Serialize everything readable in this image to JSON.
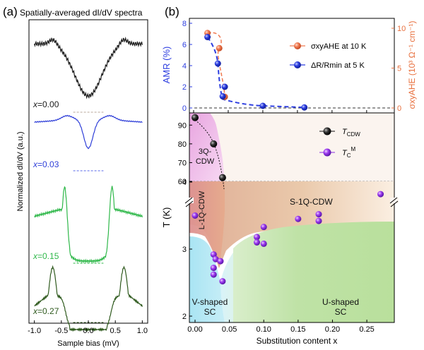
{
  "chart_data": [
    {
      "type": "line",
      "panel_label": "(a)",
      "title": "Spatially-averaged dI/dV spectra",
      "xlabel": "Sample bias (mV)",
      "ylabel": "Normalized dI/dV (a.u.)",
      "xlim": [
        -1.0,
        1.0
      ],
      "x_ticks": [
        "-1.0",
        "-0.5",
        "0.0",
        "0.5",
        "1.0"
      ],
      "series": [
        {
          "label_html": "x=0.00",
          "label_var": "x",
          "label_val": "=0.00",
          "color": "#1a1a1a"
        },
        {
          "label_html": "x=0.03",
          "label_var": "x",
          "label_val": "=0.03",
          "color": "#2f3fd8"
        },
        {
          "label_html": "x=0.15",
          "label_var": "x",
          "label_val": "=0.15",
          "color": "#2fb84a"
        },
        {
          "label_html": "x=0.27",
          "label_var": "x",
          "label_val": "=0.27",
          "color": "#2f5a1e"
        }
      ]
    },
    {
      "type": "scatter",
      "panel_label": "(b)",
      "top": {
        "ylabel_left": "AMR (%)",
        "ylabel_right": "σxyAHE (10³ Ω⁻¹ cm⁻¹)",
        "ylim_left": [
          0,
          8
        ],
        "ylim_right": [
          0,
          10
        ],
        "left_ticks": [
          "0",
          "2",
          "4",
          "6",
          "8"
        ],
        "right_ticks": [
          "0",
          "5",
          "10"
        ],
        "series": [
          {
            "name": "σxyAHE at 10 K",
            "color": "#f07a52",
            "axis": "right",
            "x": [
              0.02,
              0.037,
              0.045
            ],
            "y": [
              9.4,
              7.5,
              1.4
            ]
          },
          {
            "name": "ΔR/Rmin at 5 K",
            "color": "#2d3ee0",
            "axis": "left",
            "x": [
              0.02,
              0.035,
              0.042,
              0.045,
              0.1,
              0.16
            ],
            "y": [
              6.7,
              4.2,
              1.1,
              2.0,
              0.2,
              0.05
            ]
          }
        ]
      },
      "bottom": {
        "xlabel": "Substitution  content x",
        "ylabel": "T (K)",
        "x_ticks": [
          "0.00",
          "0.05",
          "0.10",
          "0.15",
          "0.20",
          "0.25"
        ],
        "y_ticks_upper": [
          "60",
          "70",
          "80",
          "90"
        ],
        "y_ticks_lower": [
          "2",
          "3",
          "4"
        ],
        "regions": [
          "3Q-CDW",
          "S-1Q-CDW",
          "L-1Q-CDW",
          "V-shaped SC",
          "U-shaped SC"
        ],
        "series": [
          {
            "name": "T_CDW",
            "color": "#111111",
            "x": [
              0.0,
              0.027,
              0.04
            ],
            "y": [
              94,
              80,
              62
            ]
          },
          {
            "name": "T_C^M",
            "color": "#8a2be2",
            "x": [
              0.0,
              0.027,
              0.027,
              0.027,
              0.03,
              0.037,
              0.04,
              0.09,
              0.09,
              0.1,
              0.1,
              0.15,
              0.18,
              0.18,
              0.27
            ],
            "y": [
              3.5,
              2.92,
              2.72,
              2.62,
              2.85,
              2.82,
              2.52,
              3.18,
              3.1,
              3.33,
              3.08,
              3.45,
              3.52,
              3.42,
              3.82
            ]
          }
        ]
      }
    }
  ]
}
